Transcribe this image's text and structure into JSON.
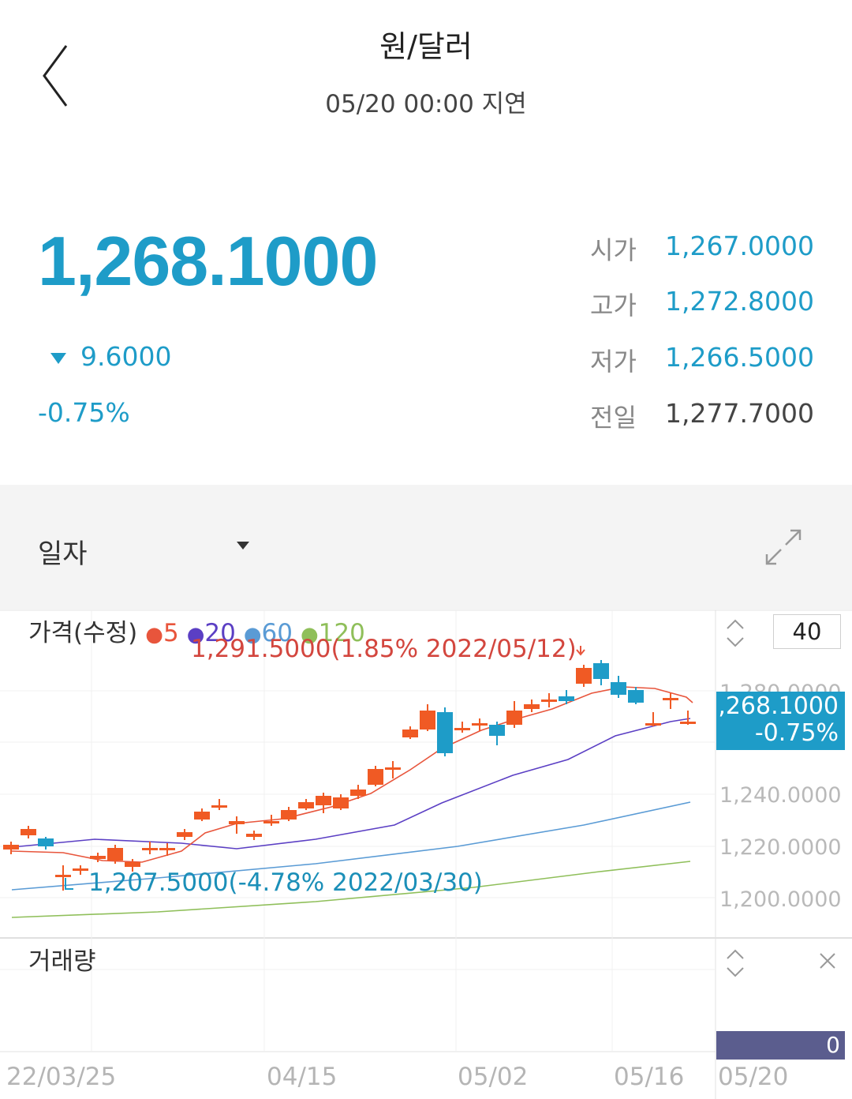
{
  "header": {
    "title": "원/달러",
    "subtitle": "05/20 00:00 지연"
  },
  "quote": {
    "price": "1,268.1000",
    "change": "9.6000",
    "change_direction": "down",
    "change_pct": "-0.75%",
    "stats": [
      {
        "label": "시가",
        "value": "1,267.0000",
        "color": "#1e9cc8"
      },
      {
        "label": "고가",
        "value": "1,272.8000",
        "color": "#1e9cc8"
      },
      {
        "label": "저가",
        "value": "1,266.5000",
        "color": "#1e9cc8"
      },
      {
        "label": "전일",
        "value": "1,277.7000",
        "color": "#444444"
      }
    ]
  },
  "toolbar": {
    "period_selected": "일자",
    "expand_icon": "expand-icon"
  },
  "chart": {
    "legend_title": "가격(수정)",
    "legend": [
      {
        "label": "5",
        "color": "#e8553c"
      },
      {
        "label": "20",
        "color": "#5b3fc4"
      },
      {
        "label": "60",
        "color": "#5a9bd5"
      },
      {
        "label": "120",
        "color": "#8fbf5a"
      }
    ],
    "annotation_high": "1,291.5000(1.85% 2022/05/12)",
    "annotation_low": "1,207.5000(-4.78% 2022/03/30)",
    "period_count": "40",
    "current_price_label": ",268.1000",
    "current_pct_label": "-0.75%",
    "y_ticks": [
      "1,280.0000",
      "1,240.0000",
      "1,220.0000",
      "1,200.0000"
    ],
    "volume_title": "거래량",
    "volume_label": "0",
    "x_ticks": [
      "22/03/25",
      "04/15",
      "05/02",
      "05/16",
      "05/20"
    ],
    "up_color": "#f05a24",
    "down_color": "#1e9cc8"
  }
}
